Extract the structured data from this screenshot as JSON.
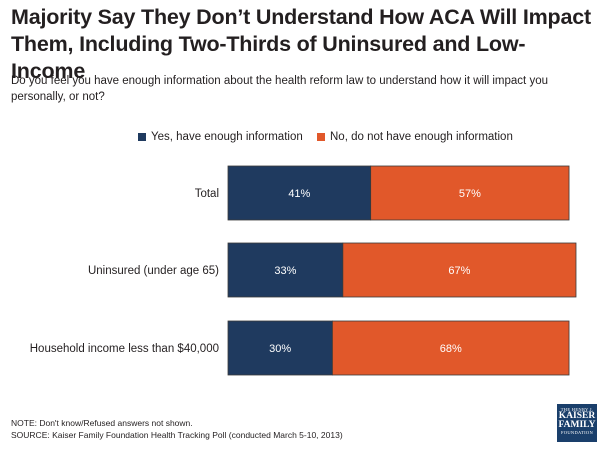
{
  "title": "Majority Say They Don’t Understand How ACA Will Impact Them, Including Two-Thirds of Uninsured and Low-Income",
  "subtitle": "Do you feel you have enough information about the health reform law to understand how it will impact you personally, or not?",
  "colors": {
    "yes": "#1f3a5f",
    "no": "#e1582a"
  },
  "chart_data": {
    "type": "bar",
    "orientation": "horizontal",
    "stacked": true,
    "categories": [
      "Total",
      "Uninsured (under age 65)",
      "Household income less than $40,000"
    ],
    "series": [
      {
        "name": "Yes, have enough information",
        "values": [
          41,
          33,
          30
        ],
        "labels": [
          "41%",
          "33%",
          "30%"
        ]
      },
      {
        "name": "No, do not have enough information",
        "values": [
          57,
          67,
          68
        ],
        "labels": [
          "57%",
          "67%",
          "68%"
        ]
      }
    ],
    "xlim": [
      0,
      100
    ],
    "legend_position": "top"
  },
  "footnotes": {
    "note": "NOTE: Don't know/Refused answers not shown.",
    "source": "SOURCE: Kaiser Family Foundation Health Tracking Poll (conducted March 5-10, 2013)"
  },
  "logo": {
    "line1": "THE HENRY J.",
    "line2a": "KAISER",
    "line2b": "FAMILY",
    "line3": "FOUNDATION"
  }
}
